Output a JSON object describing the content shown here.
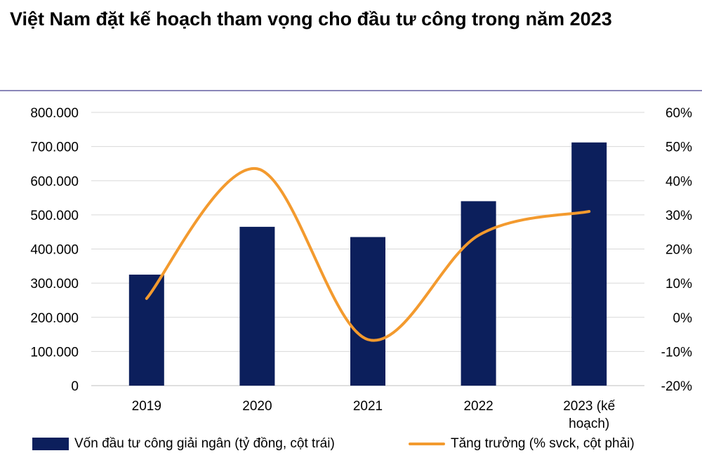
{
  "title": "Việt Nam đặt kế hoạch tham vọng cho đầu tư công trong năm 2023",
  "colors": {
    "bar": "#0c1f5c",
    "line": "#f39a2e",
    "grid": "#d9d9d9",
    "rule": "#8a86b9"
  },
  "chart_data": {
    "type": "bar",
    "categories": [
      [
        "2019"
      ],
      [
        "2020"
      ],
      [
        "2021"
      ],
      [
        "2022"
      ],
      [
        "2023 (kế",
        "hoạch)"
      ]
    ],
    "series": [
      {
        "name": "Vốn đầu tư công giải ngân (tỷ đồng, cột trái)",
        "type": "bar",
        "axis": "left",
        "values": [
          325000,
          465000,
          435000,
          540000,
          712000
        ]
      },
      {
        "name": "Tăng trưởng (% svck, cột phải)",
        "type": "line",
        "axis": "right",
        "smooth": true,
        "values": [
          5.5,
          43.5,
          -6.5,
          24,
          31
        ]
      }
    ],
    "y_left": {
      "min": 0,
      "max": 800000,
      "ticks": [
        "0",
        "100.000",
        "200.000",
        "300.000",
        "400.000",
        "500.000",
        "600.000",
        "700.000",
        "800.000"
      ]
    },
    "y_right": {
      "min": -20,
      "max": 60,
      "ticks": [
        "-20%",
        "-10%",
        "0%",
        "10%",
        "20%",
        "30%",
        "40%",
        "50%",
        "60%"
      ]
    },
    "grid": true,
    "legend": "bottom"
  }
}
